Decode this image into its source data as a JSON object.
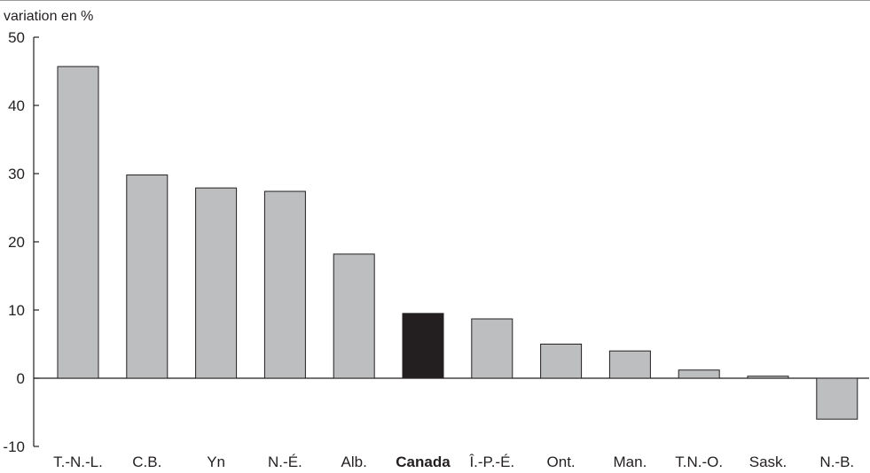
{
  "chart_data": {
    "type": "bar",
    "ylabel": "variation en %",
    "ylim": [
      -10,
      50
    ],
    "yticks": [
      -10,
      0,
      10,
      20,
      30,
      40,
      50
    ],
    "categories": [
      "T.-N.-L.",
      "C.B.",
      "Yn",
      "N.-É.",
      "Alb.",
      "Canada",
      "Î.-P.-É.",
      "Ont.",
      "Man.",
      "T.N.-O.",
      "Sask.",
      "N.-B."
    ],
    "values": [
      45.7,
      29.8,
      27.9,
      27.4,
      18.2,
      9.5,
      8.7,
      5.0,
      4.0,
      1.2,
      0.3,
      -6.0
    ],
    "highlight_category": "Canada",
    "grid": false,
    "colors": {
      "bar": "#bcbec0",
      "highlight_bar": "#231f20",
      "bar_stroke": "#231f20",
      "axis": "#231f20",
      "text": "#231f20",
      "top_rule": "#999999"
    }
  }
}
